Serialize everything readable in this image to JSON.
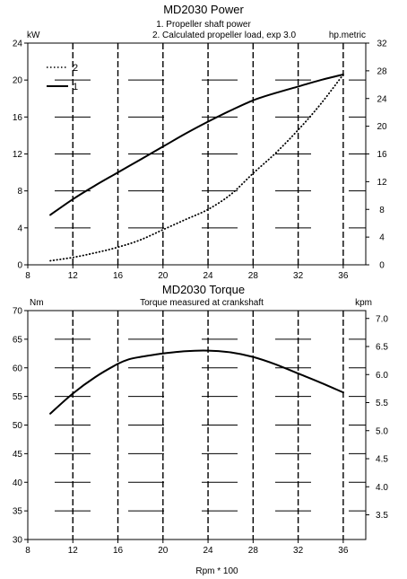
{
  "chart_data": [
    {
      "type": "line",
      "title": "MD2030 Power",
      "subtitle_lines": [
        "1. Propeller shaft power",
        "2. Calculated propeller load, exp 3.0"
      ],
      "ylabel_left": "kW",
      "ylabel_right": "hp.metric",
      "xlim": [
        8,
        38
      ],
      "ylim_left": [
        0,
        24
      ],
      "ylim_right": [
        0,
        32
      ],
      "x_ticks": [
        "8",
        "12",
        "16",
        "20",
        "24",
        "28",
        "32",
        "36"
      ],
      "y_ticks_left": [
        "0",
        "4",
        "8",
        "12",
        "16",
        "20",
        "24"
      ],
      "y_ticks_right": [
        "0",
        "4",
        "8",
        "12",
        "16",
        "20",
        "24",
        "28",
        "32"
      ],
      "legend": {
        "placement": "top-left",
        "entries": [
          {
            "label": "2",
            "style": "dotted"
          },
          {
            "label": "1",
            "style": "solid"
          }
        ]
      },
      "series": [
        {
          "name": "1",
          "style": "solid",
          "x": [
            10,
            12,
            14,
            16,
            18,
            20,
            22,
            24,
            26,
            28,
            30,
            32,
            34,
            36
          ],
          "y": [
            5.4,
            7.1,
            8.6,
            10.0,
            11.4,
            12.8,
            14.2,
            15.5,
            16.7,
            17.8,
            18.6,
            19.3,
            20.0,
            20.6
          ]
        },
        {
          "name": "2",
          "style": "dotted",
          "x": [
            10,
            12,
            14,
            16,
            18,
            20,
            22,
            24,
            26,
            28,
            30,
            32,
            34,
            36
          ],
          "y": [
            0.44,
            0.8,
            1.3,
            1.9,
            2.7,
            3.8,
            4.9,
            6.0,
            7.6,
            9.9,
            12.1,
            14.6,
            17.4,
            20.6
          ]
        }
      ]
    },
    {
      "type": "line",
      "title": "MD2030 Torque",
      "subtitle": "Torque measured at crankshaft",
      "ylabel_left": "Nm",
      "ylabel_right": "kpm",
      "xlabel": "Rpm * 100",
      "xlim": [
        8,
        38
      ],
      "ylim_left": [
        30,
        70
      ],
      "ylim_right": [
        3.06,
        7.14
      ],
      "x_ticks": [
        "8",
        "12",
        "16",
        "20",
        "24",
        "28",
        "32",
        "36"
      ],
      "y_ticks_left": [
        "30",
        "35",
        "40",
        "45",
        "50",
        "55",
        "60",
        "65",
        "70"
      ],
      "y_ticks_right": [
        "3.5",
        "4.0",
        "4.5",
        "5.0",
        "5.5",
        "6.0",
        "6.5",
        "7.0"
      ],
      "series": [
        {
          "name": "",
          "style": "solid",
          "x": [
            10,
            12,
            14,
            16,
            17,
            18,
            20,
            22,
            24,
            26,
            28,
            30,
            32,
            34,
            36
          ],
          "y": [
            52.0,
            55.5,
            58.4,
            60.7,
            61.5,
            61.9,
            62.5,
            62.9,
            63.0,
            62.7,
            61.9,
            60.6,
            59.0,
            57.4,
            55.7
          ]
        }
      ]
    }
  ]
}
